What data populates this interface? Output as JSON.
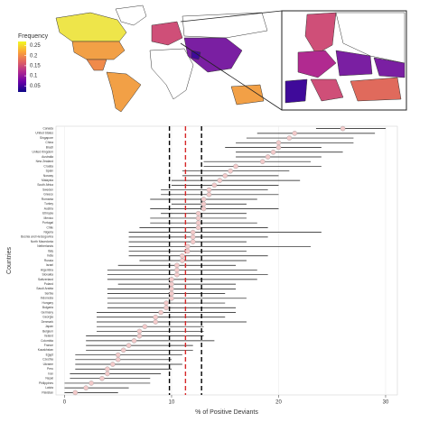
{
  "map": {
    "legend_title": "Frequency",
    "clim": [
      0.02,
      0.27
    ],
    "ticks": [
      0.05,
      0.1,
      0.15,
      0.2,
      0.25
    ]
  },
  "chart_data": {
    "type": "forest",
    "x_label": "% of Positive Deviants",
    "y_label": "Countries",
    "categories": [
      "Canada",
      "United States",
      "Singapore",
      "China",
      "Brazil",
      "United Kingdom",
      "Australia",
      "New Zealand",
      "Croatia",
      "Spain",
      "Norway",
      "Malaysia",
      "South Africa",
      "Sweden",
      "Greece",
      "Romania",
      "Turkey",
      "Austria",
      "Ethiopia",
      "Mexico",
      "Portugal",
      "Chile",
      "Nigeria",
      "Bosnia and Herzegovina",
      "North Macedonia",
      "Netherlands",
      "Italy",
      "India",
      "Russia",
      "Israel",
      "Argentina",
      "Slovakia",
      "Switzerland",
      "Poland",
      "Saudi Arabia",
      "Serbia",
      "Indonesia",
      "Hungary",
      "Bulgaria",
      "Germany",
      "Georgia",
      "Denmark",
      "Japan",
      "Belgium",
      "Ireland",
      "Colombia",
      "France",
      "Kazakhstan",
      "Egypt",
      "Czechia",
      "Ukraine",
      "Peru",
      "Iran",
      "Nepal",
      "Philippines",
      "Latvia",
      "Pakistan"
    ],
    "values": [
      26,
      21.5,
      21,
      20,
      20,
      19.5,
      19,
      18.5,
      16,
      15.5,
      15,
      14.5,
      14,
      13.5,
      13.5,
      13,
      13,
      13,
      12.5,
      12.5,
      12.5,
      12.5,
      12,
      12,
      12,
      11.5,
      11.5,
      11,
      11,
      10.5,
      10.5,
      10.5,
      10,
      10,
      10,
      10,
      10,
      9.5,
      9.5,
      9,
      8.5,
      8.5,
      7.5,
      7,
      7,
      6.5,
      6,
      5.5,
      5,
      5,
      4.5,
      4,
      4,
      3.5,
      2.5,
      2,
      1
    ],
    "lower": [
      23.5,
      18,
      17,
      16,
      15,
      16,
      16,
      13,
      13,
      11,
      11,
      10,
      10,
      9,
      9,
      8,
      10,
      8,
      9,
      8,
      8,
      7,
      6,
      6,
      6,
      6,
      6,
      6,
      7,
      5,
      4,
      4,
      4,
      5,
      4,
      4,
      4,
      4,
      4,
      3,
      3,
      3,
      3,
      3,
      2,
      2,
      2,
      2,
      1,
      1,
      1,
      1,
      0.5,
      0.5,
      0,
      0,
      0
    ],
    "upper": [
      30,
      29,
      27,
      27,
      24,
      26,
      24,
      23,
      24,
      21,
      20,
      22,
      20,
      19,
      20,
      18,
      17,
      20,
      17,
      17,
      18,
      19,
      24,
      19,
      17,
      23,
      17,
      19,
      17,
      16,
      18,
      19,
      18,
      16,
      16,
      15,
      17,
      15,
      16,
      16,
      15,
      17,
      13,
      13,
      13,
      14,
      12,
      12,
      11,
      10,
      11,
      10,
      9,
      8,
      8,
      6,
      5
    ],
    "marker_color": "#f2c9c9",
    "line_color": "#111111",
    "reference_lines": [
      {
        "value": 9.8,
        "color": "#000000"
      },
      {
        "value": 11.3,
        "color": "#d62728"
      },
      {
        "value": 12.8,
        "color": "#000000"
      }
    ],
    "xlim": [
      -0.8,
      31.1
    ],
    "xticks": [
      0,
      10,
      20,
      30
    ],
    "grid": true
  }
}
